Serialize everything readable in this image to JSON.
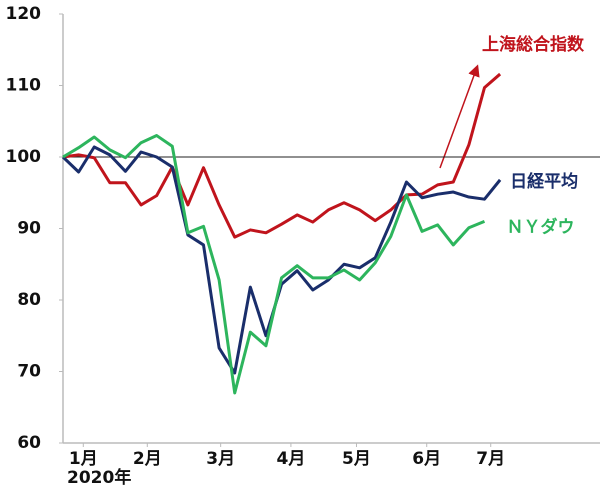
{
  "chart_data": {
    "type": "line",
    "x": [
      0,
      1,
      2,
      3,
      4,
      5,
      6,
      7,
      8,
      9,
      10,
      11,
      12,
      13,
      14,
      15,
      16,
      17,
      18,
      19,
      20,
      21,
      22,
      23,
      24,
      25,
      26,
      27,
      28
    ],
    "xlim": [
      0,
      34.4
    ],
    "xticks": [
      {
        "value": 1.3,
        "label": "1月"
      },
      {
        "value": 5.4,
        "label": "2月"
      },
      {
        "value": 10.1,
        "label": "3月"
      },
      {
        "value": 14.6,
        "label": "4月"
      },
      {
        "value": 18.8,
        "label": "5月"
      },
      {
        "value": 23.3,
        "label": "6月"
      },
      {
        "value": 27.4,
        "label": "7月"
      }
    ],
    "year_label": "2020年",
    "ylim": [
      60,
      120
    ],
    "yticks": [
      60,
      70,
      80,
      90,
      100,
      110,
      120
    ],
    "hline": 100,
    "series": [
      {
        "name": "上海総合指数",
        "color": "#c0141c",
        "values": [
          100,
          100.3,
          99.9,
          96.4,
          96.4,
          93.3,
          94.6,
          98.6,
          93.3,
          98.5,
          93.3,
          88.8,
          89.8,
          89.4,
          90.6,
          91.9,
          90.9,
          92.6,
          93.6,
          92.6,
          91.1,
          92.6,
          94.7,
          94.8,
          96.1,
          96.5,
          101.7,
          109.7,
          111.6
        ]
      },
      {
        "name": "日経平均",
        "color": "#1a2e6b",
        "values": [
          100,
          97.9,
          101.4,
          100.3,
          98.0,
          100.7,
          100,
          98.6,
          89.1,
          87.7,
          73.3,
          69.8,
          81.8,
          75.0,
          82.2,
          84.1,
          81.4,
          82.8,
          85.0,
          84.5,
          85.9,
          90.9,
          96.5,
          94.3,
          94.8,
          95.1,
          94.4,
          94.1,
          96.8
        ]
      },
      {
        "name": "ＮＹダウ",
        "color": "#2db55d",
        "values": [
          100,
          101.3,
          102.8,
          101.0,
          99.9,
          102.0,
          103.0,
          101.5,
          89.4,
          90.3,
          82.8,
          67.0,
          75.5,
          73.6,
          83.1,
          84.8,
          83.1,
          83.1,
          84.2,
          82.8,
          85.2,
          88.9,
          94.7,
          89.6,
          90.5,
          87.7,
          90.1,
          91.0,
          null
        ]
      }
    ]
  }
}
